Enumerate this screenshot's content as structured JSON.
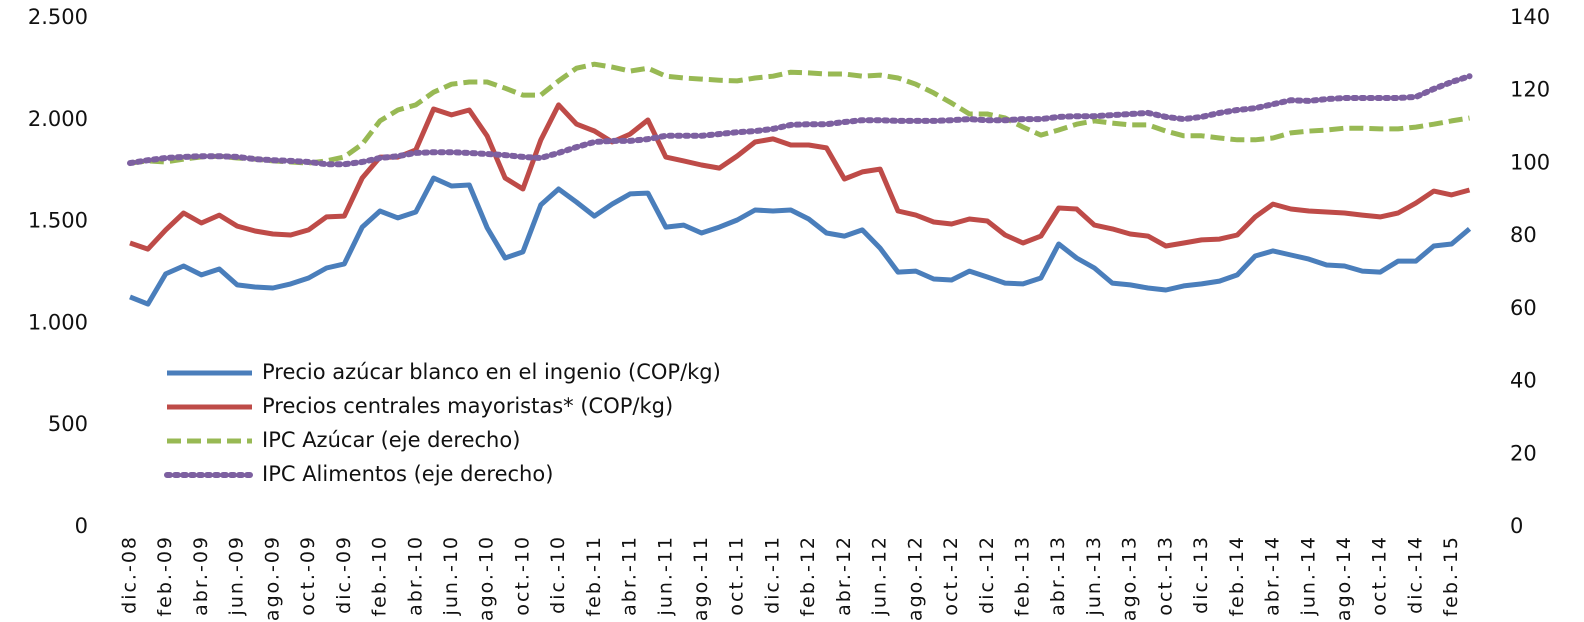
{
  "chart_data": {
    "type": "line",
    "categories": [
      "dic.-08",
      null,
      "feb.-09",
      null,
      "abr.-09",
      null,
      "jun.-09",
      null,
      "ago.-09",
      null,
      "oct.-09",
      null,
      "dic.-09",
      null,
      "feb.-10",
      null,
      "abr.-10",
      null,
      "jun.-10",
      null,
      "ago.-10",
      null,
      "oct.-10",
      null,
      "dic.-10",
      null,
      "feb.-11",
      null,
      "abr.-11",
      null,
      "jun.-11",
      null,
      "ago.-11",
      null,
      "oct.-11",
      null,
      "dic.-11",
      null,
      "feb.-12",
      null,
      "abr.-12",
      null,
      "jun.-12",
      null,
      "ago.-12",
      null,
      "oct.-12",
      null,
      "dic.-12",
      null,
      "feb.-13",
      null,
      "abr.-13",
      null,
      "jun.-13",
      null,
      "ago.-13",
      null,
      "oct.-13",
      null,
      "dic.-13",
      null,
      "feb.-14",
      null,
      "abr.-14",
      null,
      "jun.-14",
      null,
      "ago.-14",
      null,
      "oct.-14",
      null,
      "dic.-14",
      null,
      "feb.-15",
      null
    ],
    "series": [
      {
        "name": "Precio azúcar blanco en el ingenio (COP/kg)",
        "color": "#4a7ebb",
        "style": "solid",
        "values": [
          1130,
          1095,
          1243,
          1282,
          1238,
          1267,
          1189,
          1179,
          1174,
          1194,
          1223,
          1272,
          1292,
          1473,
          1552,
          1518,
          1547,
          1714,
          1675,
          1680,
          1469,
          1321,
          1351,
          1582,
          1660,
          1596,
          1527,
          1586,
          1636,
          1640,
          1473,
          1483,
          1444,
          1473,
          1508,
          1557,
          1552,
          1557,
          1513,
          1444,
          1429,
          1459,
          1370,
          1252,
          1257,
          1218,
          1213,
          1257,
          1228,
          1198,
          1194,
          1223,
          1390,
          1321,
          1272,
          1198,
          1189,
          1174,
          1164,
          1184,
          1194,
          1208,
          1238,
          1331,
          1356,
          1336,
          1316,
          1287,
          1282,
          1257,
          1252,
          1306,
          1306,
          1380,
          1390,
          1464
        ]
      },
      {
        "name": "Precios centrales mayoristas* (COP/kg)",
        "color": "#be4b48",
        "style": "solid",
        "values": [
          1395,
          1365,
          1459,
          1542,
          1493,
          1532,
          1478,
          1454,
          1439,
          1434,
          1459,
          1523,
          1527,
          1714,
          1817,
          1817,
          1852,
          2053,
          2024,
          2048,
          1920,
          1714,
          1660,
          1901,
          2073,
          1979,
          1945,
          1891,
          1930,
          1999,
          1817,
          1798,
          1778,
          1763,
          1822,
          1891,
          1906,
          1876,
          1876,
          1862,
          1709,
          1744,
          1758,
          1552,
          1532,
          1498,
          1488,
          1513,
          1503,
          1434,
          1395,
          1429,
          1567,
          1562,
          1483,
          1464,
          1439,
          1429,
          1380,
          1395,
          1410,
          1414,
          1434,
          1523,
          1586,
          1562,
          1552,
          1547,
          1542,
          1532,
          1523,
          1542,
          1591,
          1650,
          1631,
          1655
        ]
      },
      {
        "name": "IPC Azúcar (eje derecho)",
        "color": "#98b954",
        "style": "dashed",
        "axis": "y2",
        "values": [
          100.1,
          100.7,
          100.4,
          101.2,
          101.8,
          102.0,
          101.5,
          101.2,
          100.7,
          100.4,
          100.1,
          100.7,
          101.8,
          105.3,
          111.7,
          114.7,
          116.1,
          119.6,
          121.8,
          122.4,
          122.4,
          120.7,
          118.8,
          118.8,
          122.7,
          126.2,
          127.3,
          126.5,
          125.4,
          126.2,
          124.0,
          123.5,
          123.2,
          122.9,
          122.7,
          123.5,
          124.0,
          125.1,
          124.9,
          124.6,
          124.6,
          124.0,
          124.3,
          123.5,
          121.8,
          119.4,
          116.6,
          113.6,
          113.6,
          112.5,
          110.0,
          107.8,
          109.2,
          110.8,
          111.7,
          111.1,
          110.6,
          110.6,
          108.9,
          107.6,
          107.6,
          107.0,
          106.5,
          106.5,
          107.0,
          108.4,
          108.9,
          109.2,
          109.7,
          109.7,
          109.5,
          109.5,
          110.0,
          110.8,
          111.7,
          112.5
        ]
      },
      {
        "name": "IPC Alimentos (eje derecho)",
        "color": "#7d60a0",
        "style": "dotted",
        "axis": "y2",
        "values": [
          100.1,
          100.9,
          101.5,
          101.8,
          102.0,
          102.0,
          101.8,
          101.2,
          100.9,
          100.7,
          100.4,
          99.8,
          99.8,
          100.4,
          101.5,
          102.0,
          102.9,
          103.1,
          103.1,
          102.9,
          102.6,
          102.3,
          101.8,
          101.5,
          102.9,
          104.5,
          105.9,
          106.2,
          106.2,
          106.7,
          107.6,
          107.6,
          107.6,
          108.1,
          108.6,
          108.9,
          109.5,
          110.6,
          110.8,
          110.8,
          111.4,
          111.9,
          111.9,
          111.7,
          111.7,
          111.7,
          111.9,
          112.2,
          111.9,
          111.9,
          112.2,
          112.2,
          112.8,
          113.0,
          113.0,
          113.3,
          113.6,
          113.9,
          112.8,
          112.2,
          112.8,
          113.9,
          114.7,
          115.2,
          116.3,
          117.4,
          117.2,
          117.7,
          118.0,
          118.0,
          118.0,
          118.0,
          118.3,
          120.5,
          122.4,
          124.0
        ]
      }
    ],
    "ylim": [
      0,
      2500
    ],
    "yticks": [
      0,
      500,
      {
        "value": 1000,
        "label": "1.000"
      },
      {
        "value": 1500,
        "label": "1.500"
      },
      {
        "value": 2000,
        "label": "2.000"
      },
      {
        "value": 2500,
        "label": "2.500"
      }
    ],
    "y2lim": [
      0,
      140
    ],
    "y2ticks": [
      0,
      20,
      40,
      60,
      80,
      100,
      120,
      140
    ],
    "legend": "left",
    "grid": false
  }
}
